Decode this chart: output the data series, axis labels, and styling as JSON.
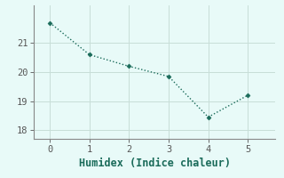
{
  "x": [
    0,
    1,
    2,
    3,
    4,
    5
  ],
  "y": [
    21.7,
    20.6,
    20.2,
    19.85,
    18.45,
    19.2
  ],
  "xlabel": "Humidex (Indice chaleur)",
  "line_color": "#1a6b5a",
  "marker": "D",
  "marker_size": 2.5,
  "line_width": 1.0,
  "line_style": "dotted",
  "background_color": "#e8faf8",
  "grid_color": "#c8ded8",
  "axis_color": "#888888",
  "tick_color": "#555555",
  "xlim": [
    -0.4,
    5.7
  ],
  "ylim": [
    17.7,
    22.3
  ],
  "yticks": [
    18,
    19,
    20,
    21
  ],
  "xticks": [
    0,
    1,
    2,
    3,
    4,
    5
  ],
  "tick_fontsize": 7.5,
  "xlabel_fontsize": 8.5
}
